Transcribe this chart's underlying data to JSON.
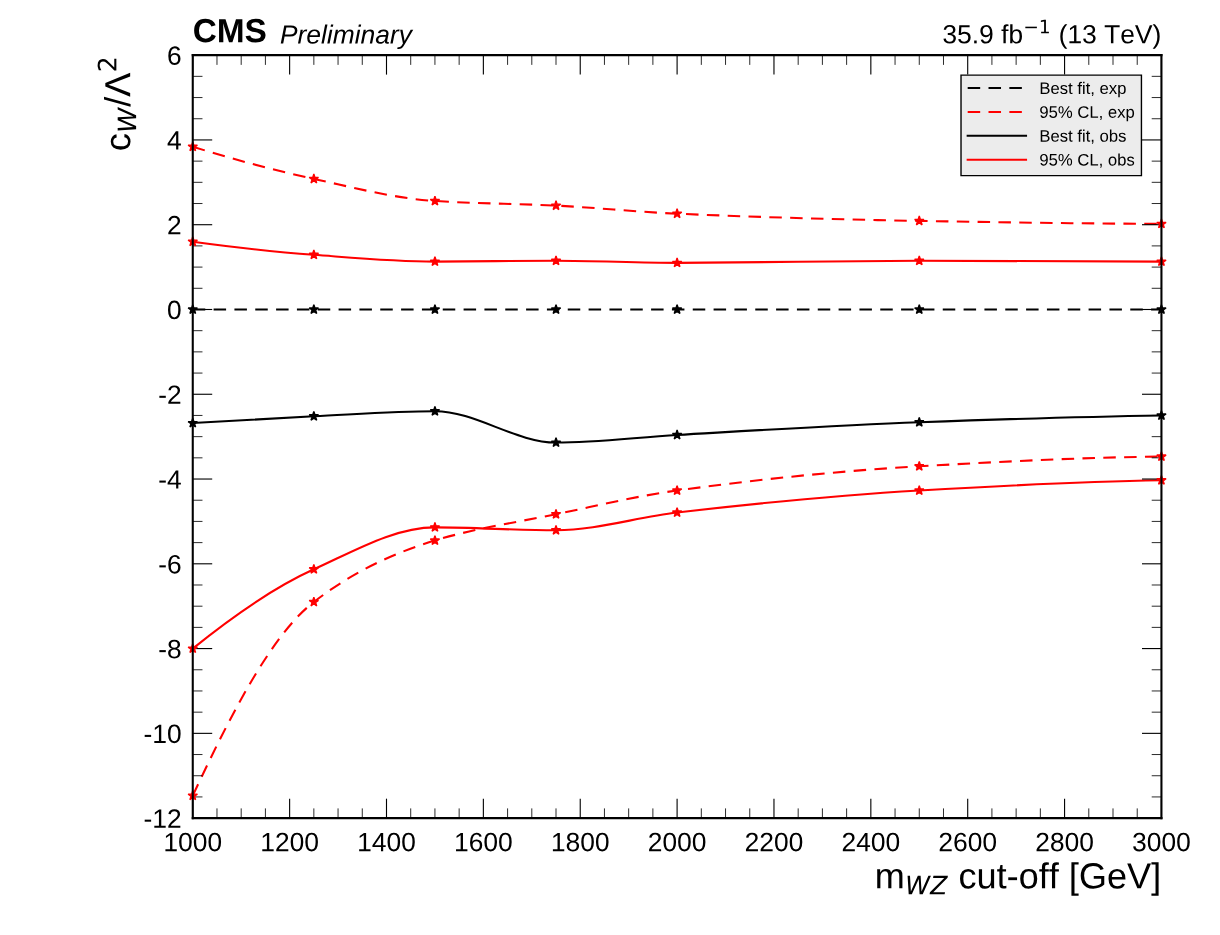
{
  "chart_data": {
    "type": "line",
    "title": "CMS",
    "subtitle": "Preliminary",
    "annotations": [
      "35.9 fb$^{−1}$ (13 TeV)"
    ],
    "xlabel": "m$_{WZ}$ cut-off [GeV]",
    "ylabel": "c$_{W}$/Λ$^{2}$",
    "x": [
      1000,
      1250,
      1500,
      1750,
      2000,
      2500,
      3000
    ],
    "series": [
      {
        "name": "Best fit, exp",
        "color": "#000000",
        "line_style": "dashed",
        "values": [
          0,
          0,
          0,
          0,
          0,
          0,
          0
        ]
      },
      {
        "name": "95% CL, exp",
        "color": "#ff0000",
        "line_style": "dashed",
        "values": [
          3.84,
          3.08,
          2.56,
          2.45,
          2.26,
          2.09,
          2.02
        ]
      },
      {
        "name": "Best fit, obs",
        "color": "#000000",
        "line_style": "solid",
        "values": [
          -2.68,
          -2.52,
          -2.4,
          -3.14,
          -2.96,
          -2.66,
          -2.5
        ]
      },
      {
        "name": "95% CL, obs",
        "color": "#ff0000",
        "line_style": "solid",
        "values": [
          1.6,
          1.29,
          1.13,
          1.15,
          1.1,
          1.15,
          1.13
        ]
      },
      {
        "color": "#ff0000",
        "line_style": "dashed",
        "values": [
          -11.47,
          -6.9,
          -5.45,
          -4.83,
          -4.27,
          -3.7,
          -3.47
        ]
      },
      {
        "color": "#ff0000",
        "line_style": "solid",
        "values": [
          -8.0,
          -6.13,
          -5.14,
          -5.21,
          -4.79,
          -4.27,
          -4.03
        ]
      }
    ],
    "xlim": [
      1000,
      3000
    ],
    "xticks": [
      1000,
      1200,
      1400,
      1600,
      1800,
      2000,
      2200,
      2400,
      2600,
      2800,
      3000
    ],
    "ylim": [
      -12,
      6
    ],
    "yticks": [
      -12,
      -10,
      -8,
      -6,
      -4,
      -2,
      0,
      2,
      4,
      6
    ],
    "marker": "star",
    "legend": "top right",
    "grid": false
  }
}
